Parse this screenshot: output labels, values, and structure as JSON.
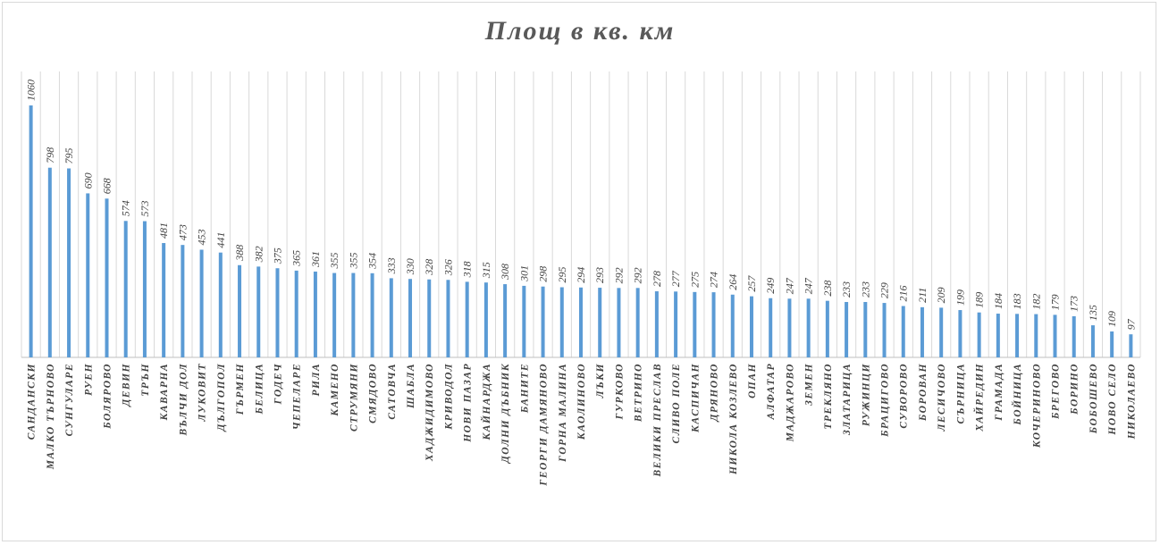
{
  "chart_data": {
    "type": "bar",
    "title": "Площ в кв. км",
    "xlabel": "",
    "ylabel": "",
    "ylim": [
      0,
      1060
    ],
    "grid": "vertical",
    "bar_color": "#5b9bd5",
    "categories": [
      "САНДАНСКИ",
      "МАЛКО ТЪРНОВО",
      "СУНГУЛАРЕ",
      "РУЕН",
      "БОЛЯРОВО",
      "ДЕВИН",
      "ТРЪН",
      "КАВАРНА",
      "ВЪЛЧИ ДОЛ",
      "ЛУКОВИТ",
      "ДЪЛГОПОЛ",
      "ГЪРМЕН",
      "БЕЛИЦА",
      "ГОДЕЧ",
      "ЧЕПЕЛАРЕ",
      "РИЛА",
      "КАМЕНО",
      "СТРУМЯНИ",
      "СМЯДОВО",
      "САТОВЧА",
      "ШАБЛА",
      "ХАДЖИДИМОВО",
      "КРИВОДОЛ",
      "НОВИ ПАЗАР",
      "КАЙНАРДЖА",
      "ДОЛНИ ДЪБНИК",
      "БАНИТЕ",
      "ГЕОРГИ ДАМЯНОВО",
      "ГОРНА МАЛИНА",
      "КАОЛИНОВО",
      "ЛЪКИ",
      "ГУРКОВО",
      "ВЕТРИНО",
      "ВЕЛИКИ ПРЕСЛАВ",
      "СЛИВО ПОЛЕ",
      "КАСПИЧАН",
      "ДРЯНОВО",
      "НИКОЛА КОЗЛЕВО",
      "ОПАН",
      "АЛФАТАР",
      "МАДЖАРОВО",
      "ЗЕМЕН",
      "ТРЕКЛЯНО",
      "ЗЛАТАРИЦА",
      "РУЖИНЦИ",
      "БРАЦИГОВО",
      "СУВОРОВО",
      "БОРОВАН",
      "ЛЕСИЧОВО",
      "СЪРНИЦА",
      "ХАЙРЕДИН",
      "ГРАМАДА",
      "БОЙНИЦА",
      "КОЧЕРИНОВО",
      "БРЕГОВО",
      "БОРИНО",
      "БОБОШЕВО",
      "НОВО СЕЛО",
      "НИКОЛАЕВО"
    ],
    "values": [
      1060,
      798,
      795,
      690,
      668,
      574,
      573,
      481,
      473,
      453,
      441,
      388,
      382,
      375,
      365,
      361,
      355,
      355,
      354,
      333,
      330,
      328,
      326,
      318,
      315,
      308,
      301,
      298,
      295,
      294,
      293,
      292,
      292,
      278,
      277,
      275,
      274,
      264,
      257,
      249,
      247,
      247,
      238,
      233,
      233,
      229,
      216,
      211,
      209,
      199,
      189,
      184,
      183,
      182,
      179,
      173,
      135,
      109,
      97
    ]
  }
}
